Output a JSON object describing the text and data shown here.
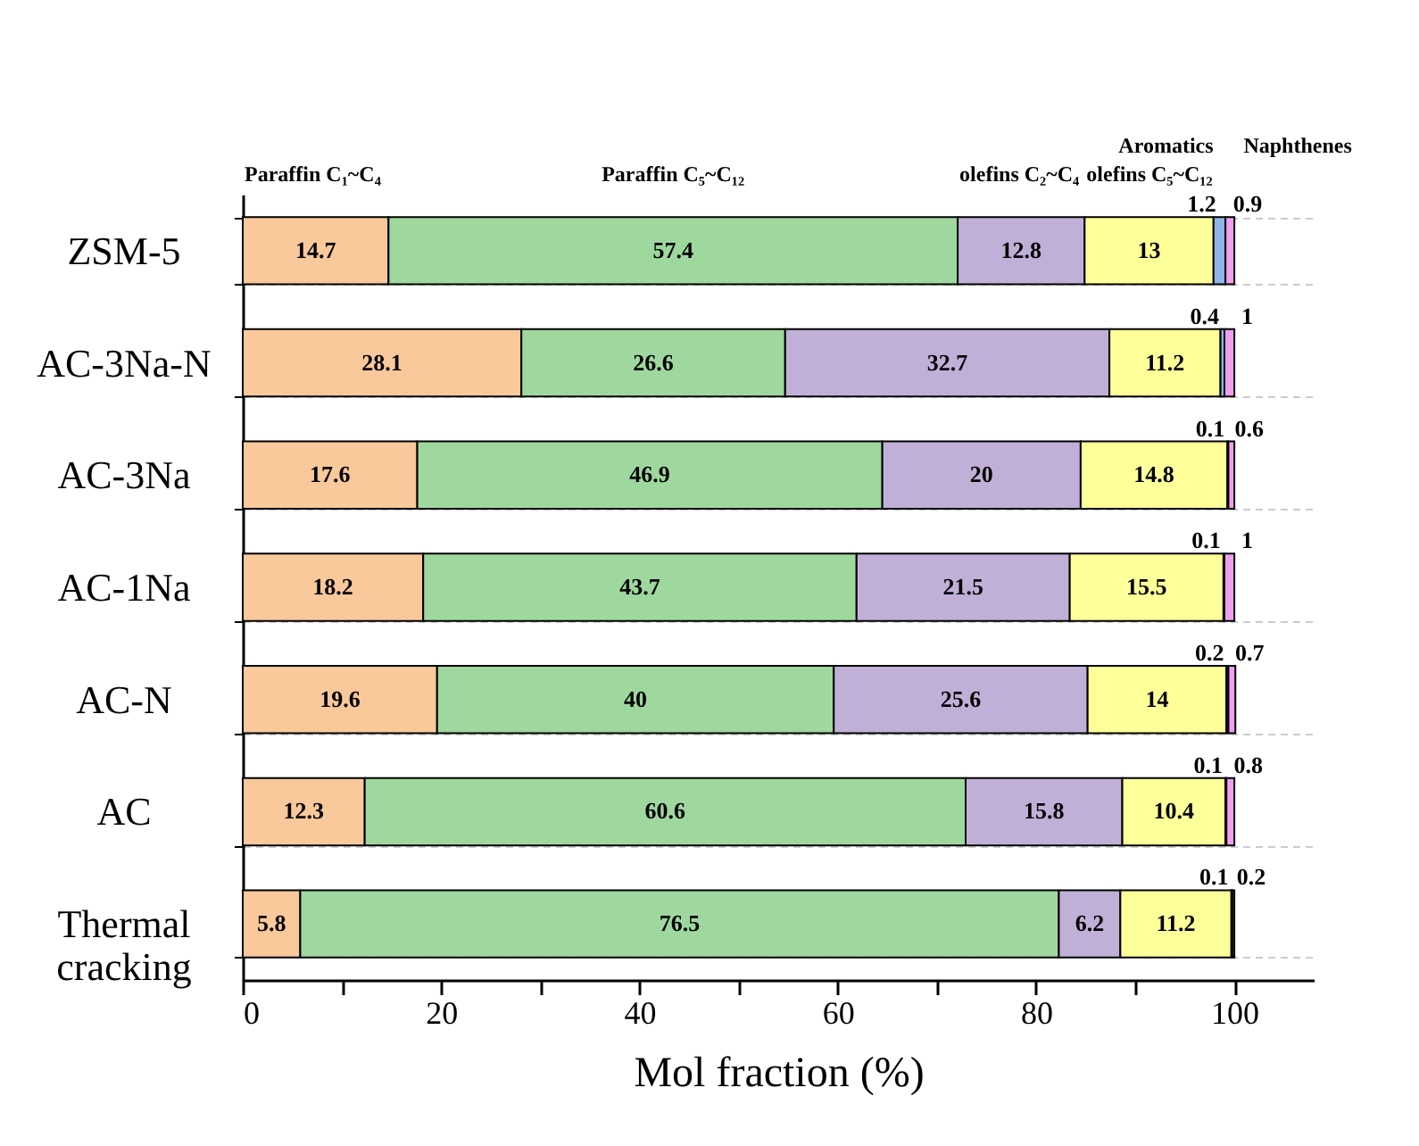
{
  "chart_data": {
    "type": "bar",
    "orientation": "horizontal",
    "stacked": true,
    "xlabel": "Mol fraction (%)",
    "categories": [
      "ZSM-5",
      "AC-3Na-N",
      "AC-3Na",
      "AC-1Na",
      "AC-N",
      "AC",
      "Thermal cracking"
    ],
    "series": [
      {
        "name": "Paraffin C₁~C₄",
        "color": "#f9c89b",
        "values": [
          14.7,
          28.1,
          17.6,
          18.2,
          19.6,
          12.3,
          5.8
        ]
      },
      {
        "name": "Paraffin C₅~C₁₂",
        "color": "#9fd89f",
        "values": [
          57.4,
          26.6,
          46.9,
          43.7,
          40,
          60.6,
          76.5
        ]
      },
      {
        "name": "olefins C₂~C₄",
        "color": "#c0b0d8",
        "values": [
          12.8,
          32.7,
          20,
          21.5,
          25.6,
          15.8,
          6.2
        ]
      },
      {
        "name": "olefins C₅~C₁₂",
        "color": "#ffff99",
        "values": [
          13,
          11.2,
          14.8,
          15.5,
          14,
          10.4,
          11.2
        ]
      },
      {
        "name": "Aromatics",
        "color": "#8fb4e8",
        "values": [
          1.2,
          0.4,
          0.1,
          0.1,
          0.2,
          0.1,
          0.1
        ]
      },
      {
        "name": "Naphthenes",
        "color": "#f09ef0",
        "values": [
          0.9,
          1,
          0.6,
          1,
          0.7,
          0.8,
          0.2
        ]
      }
    ],
    "xlim": [
      0,
      108
    ],
    "xticks": [
      0,
      {
        "value": 10,
        "label": null
      },
      20,
      {
        "value": 30,
        "label": null
      },
      40,
      {
        "value": 50,
        "label": null
      },
      60,
      {
        "value": 70,
        "label": null
      },
      80,
      {
        "value": 90,
        "label": null
      },
      100
    ],
    "grid": "y",
    "data_labels": true,
    "legend": false
  }
}
